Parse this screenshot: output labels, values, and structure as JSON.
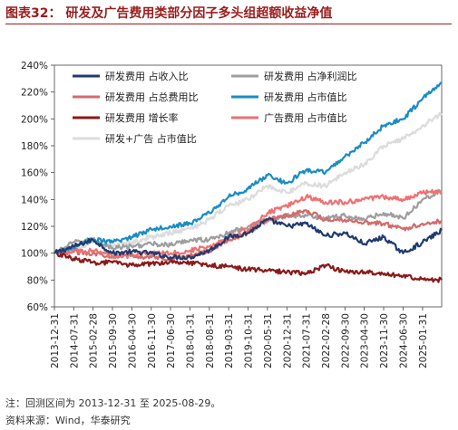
{
  "figure_title": "图表32：  研发及广告费用类部分因子多头组超额收益净值",
  "note": "注：回测区间为 2013-12-31 至 2025-08-29。",
  "source": "资料来源：Wind，华泰研究",
  "chart_data": {
    "type": "line",
    "title": "",
    "xlabel": "",
    "ylabel": "",
    "ylim": [
      0.6,
      2.4
    ],
    "y_ticks": [
      0.6,
      0.8,
      1.0,
      1.2,
      1.4,
      1.6,
      1.8,
      2.0,
      2.2,
      2.4
    ],
    "y_tick_labels": [
      "60%",
      "80%",
      "100%",
      "120%",
      "140%",
      "160%",
      "180%",
      "200%",
      "220%",
      "240%"
    ],
    "x_tick_labels": [
      "2013-12-31",
      "2014-07-31",
      "2015-02-28",
      "2015-09-30",
      "2016-04-30",
      "2016-11-30",
      "2017-06-30",
      "2018-01-31",
      "2018-08-31",
      "2019-03-31",
      "2019-10-31",
      "2020-05-31",
      "2020-12-31",
      "2021-07-31",
      "2022-02-28",
      "2022-09-30",
      "2023-04-30",
      "2023-11-30",
      "2024-06-30",
      "2025-01-31"
    ],
    "x_end": "2025-08-29",
    "grid": false,
    "legend_position": "top-left",
    "series": [
      {
        "name": "研发费用 占收入比",
        "color": "#1f3b6e",
        "points": [
          [
            "2013-12-31",
            1.0
          ],
          [
            "2014-07-31",
            1.05
          ],
          [
            "2015-02-28",
            1.1
          ],
          [
            "2015-09-30",
            1.0
          ],
          [
            "2016-04-30",
            1.01
          ],
          [
            "2016-11-30",
            1.0
          ],
          [
            "2017-06-30",
            0.97
          ],
          [
            "2018-01-31",
            0.97
          ],
          [
            "2018-08-31",
            1.02
          ],
          [
            "2019-03-31",
            1.12
          ],
          [
            "2019-10-31",
            1.15
          ],
          [
            "2020-05-31",
            1.25
          ],
          [
            "2020-12-31",
            1.2
          ],
          [
            "2021-07-31",
            1.22
          ],
          [
            "2022-02-28",
            1.13
          ],
          [
            "2022-09-30",
            1.15
          ],
          [
            "2023-04-30",
            1.07
          ],
          [
            "2023-11-30",
            1.12
          ],
          [
            "2024-06-30",
            1.0
          ],
          [
            "2025-01-31",
            1.08
          ],
          [
            "2025-08-29",
            1.17
          ]
        ]
      },
      {
        "name": "研发费用 占净利润比",
        "color": "#9e9e9e",
        "points": [
          [
            "2013-12-31",
            1.0
          ],
          [
            "2014-07-31",
            1.08
          ],
          [
            "2015-02-28",
            1.1
          ],
          [
            "2015-09-30",
            1.04
          ],
          [
            "2016-04-30",
            1.05
          ],
          [
            "2016-11-30",
            1.07
          ],
          [
            "2017-06-30",
            1.06
          ],
          [
            "2018-01-31",
            1.1
          ],
          [
            "2018-08-31",
            1.1
          ],
          [
            "2019-03-31",
            1.15
          ],
          [
            "2019-10-31",
            1.2
          ],
          [
            "2020-05-31",
            1.25
          ],
          [
            "2020-12-31",
            1.28
          ],
          [
            "2021-07-31",
            1.28
          ],
          [
            "2022-02-28",
            1.26
          ],
          [
            "2022-09-30",
            1.28
          ],
          [
            "2023-04-30",
            1.25
          ],
          [
            "2023-11-30",
            1.3
          ],
          [
            "2024-06-30",
            1.26
          ],
          [
            "2025-01-31",
            1.4
          ],
          [
            "2025-08-29",
            1.47
          ]
        ]
      },
      {
        "name": "研发费用 占总费用比",
        "color": "#d46a6a",
        "points": [
          [
            "2013-12-31",
            1.0
          ],
          [
            "2014-07-31",
            1.01
          ],
          [
            "2015-02-28",
            1.0
          ],
          [
            "2015-09-30",
            0.98
          ],
          [
            "2016-04-30",
            0.98
          ],
          [
            "2016-11-30",
            0.97
          ],
          [
            "2017-06-30",
            0.96
          ],
          [
            "2018-01-31",
            0.98
          ],
          [
            "2018-08-31",
            1.02
          ],
          [
            "2019-03-31",
            1.1
          ],
          [
            "2019-10-31",
            1.15
          ],
          [
            "2020-05-31",
            1.25
          ],
          [
            "2020-12-31",
            1.28
          ],
          [
            "2021-07-31",
            1.32
          ],
          [
            "2022-02-28",
            1.25
          ],
          [
            "2022-09-30",
            1.25
          ],
          [
            "2023-04-30",
            1.23
          ],
          [
            "2023-11-30",
            1.22
          ],
          [
            "2024-06-30",
            1.18
          ],
          [
            "2025-01-31",
            1.22
          ],
          [
            "2025-08-29",
            1.24
          ]
        ]
      },
      {
        "name": "研发费用 占市值比",
        "color": "#1a8cc4",
        "points": [
          [
            "2013-12-31",
            1.0
          ],
          [
            "2014-07-31",
            1.05
          ],
          [
            "2015-02-28",
            1.1
          ],
          [
            "2015-09-30",
            1.08
          ],
          [
            "2016-04-30",
            1.12
          ],
          [
            "2016-11-30",
            1.18
          ],
          [
            "2017-06-30",
            1.2
          ],
          [
            "2018-01-31",
            1.22
          ],
          [
            "2018-08-31",
            1.3
          ],
          [
            "2019-03-31",
            1.42
          ],
          [
            "2019-10-31",
            1.48
          ],
          [
            "2020-05-31",
            1.58
          ],
          [
            "2020-12-31",
            1.52
          ],
          [
            "2021-07-31",
            1.62
          ],
          [
            "2022-02-28",
            1.6
          ],
          [
            "2022-09-30",
            1.72
          ],
          [
            "2023-04-30",
            1.82
          ],
          [
            "2023-11-30",
            1.95
          ],
          [
            "2024-06-30",
            2.0
          ],
          [
            "2025-01-31",
            2.15
          ],
          [
            "2025-08-29",
            2.27
          ]
        ]
      },
      {
        "name": "研发费用 增长率",
        "color": "#8b1a1a",
        "points": [
          [
            "2013-12-31",
            1.0
          ],
          [
            "2014-07-31",
            0.96
          ],
          [
            "2015-02-28",
            0.93
          ],
          [
            "2015-09-30",
            0.93
          ],
          [
            "2016-04-30",
            0.91
          ],
          [
            "2016-11-30",
            0.92
          ],
          [
            "2017-06-30",
            0.94
          ],
          [
            "2018-01-31",
            0.93
          ],
          [
            "2018-08-31",
            0.91
          ],
          [
            "2019-03-31",
            0.9
          ],
          [
            "2019-10-31",
            0.88
          ],
          [
            "2020-05-31",
            0.87
          ],
          [
            "2020-12-31",
            0.86
          ],
          [
            "2021-07-31",
            0.85
          ],
          [
            "2022-02-28",
            0.91
          ],
          [
            "2022-09-30",
            0.86
          ],
          [
            "2023-04-30",
            0.86
          ],
          [
            "2023-11-30",
            0.84
          ],
          [
            "2024-06-30",
            0.83
          ],
          [
            "2025-01-31",
            0.81
          ],
          [
            "2025-08-29",
            0.8
          ]
        ]
      },
      {
        "name": "广告费用 占市值比",
        "color": "#f07070",
        "points": [
          [
            "2013-12-31",
            1.0
          ],
          [
            "2014-07-31",
            1.02
          ],
          [
            "2015-02-28",
            1.02
          ],
          [
            "2015-09-30",
            0.98
          ],
          [
            "2016-04-30",
            0.99
          ],
          [
            "2016-11-30",
            1.0
          ],
          [
            "2017-06-30",
            1.0
          ],
          [
            "2018-01-31",
            1.02
          ],
          [
            "2018-08-31",
            1.05
          ],
          [
            "2019-03-31",
            1.12
          ],
          [
            "2019-10-31",
            1.18
          ],
          [
            "2020-05-31",
            1.3
          ],
          [
            "2020-12-31",
            1.35
          ],
          [
            "2021-07-31",
            1.42
          ],
          [
            "2022-02-28",
            1.38
          ],
          [
            "2022-09-30",
            1.38
          ],
          [
            "2023-04-30",
            1.4
          ],
          [
            "2023-11-30",
            1.42
          ],
          [
            "2024-06-30",
            1.4
          ],
          [
            "2025-01-31",
            1.45
          ],
          [
            "2025-08-29",
            1.46
          ]
        ]
      },
      {
        "name": "研发+广告 占市值比",
        "color": "#dcdcdc",
        "points": [
          [
            "2013-12-31",
            1.0
          ],
          [
            "2014-07-31",
            1.03
          ],
          [
            "2015-02-28",
            1.08
          ],
          [
            "2015-09-30",
            1.06
          ],
          [
            "2016-04-30",
            1.08
          ],
          [
            "2016-11-30",
            1.12
          ],
          [
            "2017-06-30",
            1.15
          ],
          [
            "2018-01-31",
            1.18
          ],
          [
            "2018-08-31",
            1.25
          ],
          [
            "2019-03-31",
            1.35
          ],
          [
            "2019-10-31",
            1.4
          ],
          [
            "2020-05-31",
            1.5
          ],
          [
            "2020-12-31",
            1.45
          ],
          [
            "2021-07-31",
            1.52
          ],
          [
            "2022-02-28",
            1.5
          ],
          [
            "2022-09-30",
            1.6
          ],
          [
            "2023-04-30",
            1.66
          ],
          [
            "2023-11-30",
            1.8
          ],
          [
            "2024-06-30",
            1.85
          ],
          [
            "2025-01-31",
            1.95
          ],
          [
            "2025-08-29",
            2.04
          ]
        ]
      }
    ]
  }
}
